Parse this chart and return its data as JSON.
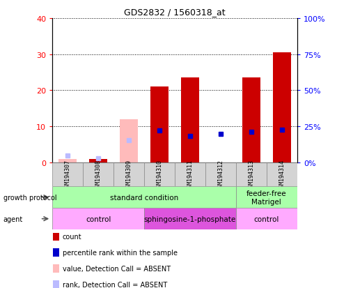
{
  "title": "GDS2832 / 1560318_at",
  "samples": [
    "GSM194307",
    "GSM194308",
    "GSM194309",
    "GSM194310",
    "GSM194311",
    "GSM194312",
    "GSM194313",
    "GSM194314"
  ],
  "count_values": [
    1.0,
    1.0,
    null,
    21.0,
    23.5,
    null,
    23.5,
    30.5
  ],
  "rank_values": [
    null,
    null,
    null,
    22.0,
    18.5,
    20.0,
    21.0,
    22.5
  ],
  "absent_value_values": [
    1.0,
    null,
    12.0,
    null,
    null,
    null,
    null,
    null
  ],
  "absent_rank_values": [
    5.0,
    3.0,
    15.5,
    null,
    null,
    null,
    null,
    null
  ],
  "count_color": "#cc0000",
  "rank_color": "#0000cc",
  "absent_value_color": "#ffbbbb",
  "absent_rank_color": "#bbbbff",
  "ylim_left": [
    0,
    40
  ],
  "ylim_right": [
    0,
    100
  ],
  "yticks_left": [
    0,
    10,
    20,
    30,
    40
  ],
  "ytick_labels_left": [
    "0",
    "10",
    "20",
    "30",
    "40"
  ],
  "yticks_right": [
    0,
    25,
    50,
    75,
    100
  ],
  "ytick_labels_right": [
    "0%",
    "25%",
    "50%",
    "75%",
    "100%"
  ],
  "growth_protocol_groups": [
    {
      "label": "standard condition",
      "start": 0,
      "end": 6,
      "color": "#aaffaa"
    },
    {
      "label": "feeder-free\nMatrigel",
      "start": 6,
      "end": 8,
      "color": "#aaffaa"
    }
  ],
  "agent_groups": [
    {
      "label": "control",
      "start": 0,
      "end": 3,
      "color": "#ffaaff"
    },
    {
      "label": "sphingosine-1-phosphate",
      "start": 3,
      "end": 6,
      "color": "#dd55dd"
    },
    {
      "label": "control",
      "start": 6,
      "end": 8,
      "color": "#ffaaff"
    }
  ],
  "legend_items": [
    {
      "label": "count",
      "color": "#cc0000"
    },
    {
      "label": "percentile rank within the sample",
      "color": "#0000cc"
    },
    {
      "label": "value, Detection Call = ABSENT",
      "color": "#ffbbbb"
    },
    {
      "label": "rank, Detection Call = ABSENT",
      "color": "#bbbbff"
    }
  ],
  "bar_width": 0.6,
  "figsize": [
    4.85,
    4.14
  ],
  "dpi": 100
}
